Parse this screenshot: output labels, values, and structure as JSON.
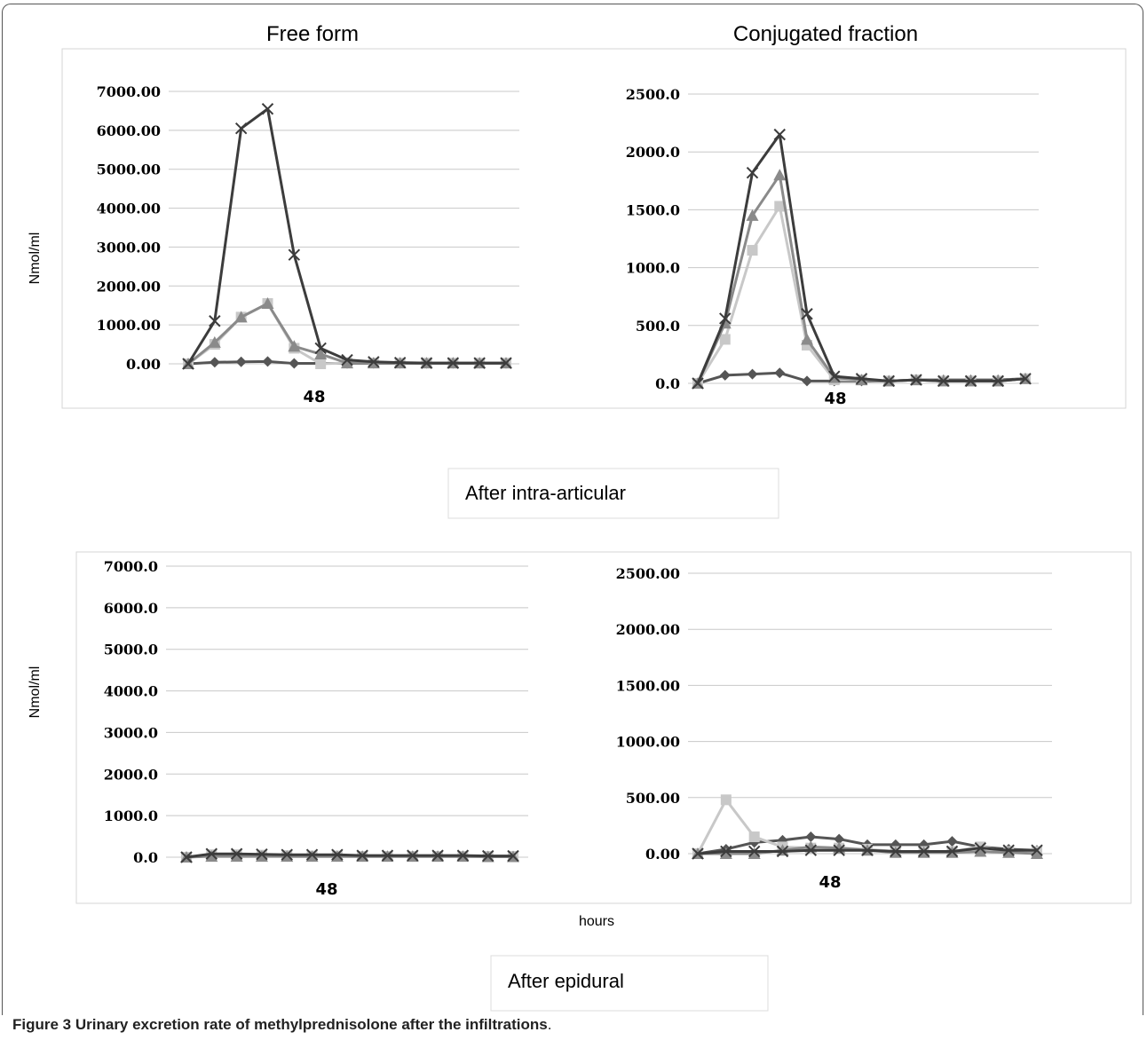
{
  "figure": {
    "caption_label": "Figure 3",
    "caption_text": "Urinary excretion rate of methylprednisolone after the infiltrations",
    "caption_end": ".",
    "titles": {
      "free_form": "Free form",
      "conjugated": "Conjugated fraction"
    },
    "section_labels": {
      "intra": "After intra-articular",
      "epidural": "After epidural"
    },
    "ylabel": "Nmol/ml",
    "xlabel": "hours",
    "x_tick_label": "48"
  },
  "colors": {
    "series": [
      "#555555",
      "#c8c8c8",
      "#8a8a8a",
      "#3c3c3c"
    ],
    "grid": "#c8c8c8",
    "panel_border": "#d6d6d6"
  },
  "chart_data": [
    {
      "type": "line",
      "title": "Free form",
      "ylabel": "Nmol/ml",
      "ylim": [
        0,
        7000
      ],
      "yticks": [
        "0.00",
        "1000.00",
        "2000.00",
        "3000.00",
        "4000.00",
        "5000.00",
        "6000.00",
        "7000.00"
      ],
      "x_tick_label": "48",
      "grid": true,
      "series": [
        {
          "marker": "diamond",
          "values": [
            0,
            40,
            50,
            60,
            10,
            10,
            10,
            10,
            10,
            10,
            10,
            10,
            10
          ]
        },
        {
          "marker": "square",
          "values": [
            0,
            500,
            1200,
            1550,
            400,
            0,
            20,
            20,
            20,
            20,
            20,
            20,
            20
          ]
        },
        {
          "marker": "triangle",
          "values": [
            0,
            550,
            1200,
            1550,
            450,
            250,
            20,
            20,
            20,
            20,
            20,
            20,
            20
          ]
        },
        {
          "marker": "x",
          "values": [
            0,
            1100,
            6050,
            6550,
            2800,
            400,
            100,
            50,
            30,
            20,
            20,
            20,
            20
          ]
        }
      ]
    },
    {
      "type": "line",
      "title": "Conjugated fraction",
      "ylim": [
        0,
        2500
      ],
      "yticks": [
        "0.0",
        "500.0",
        "1000.0",
        "1500.0",
        "2000.0",
        "2500.0"
      ],
      "x_tick_label": "48",
      "grid": true,
      "series": [
        {
          "marker": "diamond",
          "values": [
            0,
            70,
            80,
            90,
            20,
            20,
            20,
            20,
            30,
            30,
            30,
            30,
            40
          ]
        },
        {
          "marker": "square",
          "values": [
            0,
            380,
            1150,
            1530,
            330,
            30,
            30,
            20,
            30,
            20,
            20,
            20,
            40
          ]
        },
        {
          "marker": "triangle",
          "values": [
            0,
            520,
            1450,
            1800,
            380,
            50,
            30,
            20,
            30,
            20,
            20,
            20,
            40
          ]
        },
        {
          "marker": "x",
          "values": [
            0,
            560,
            1820,
            2150,
            600,
            60,
            40,
            20,
            30,
            20,
            20,
            20,
            40
          ]
        }
      ]
    },
    {
      "type": "line",
      "ylabel": "Nmol/ml",
      "ylim": [
        0,
        7000
      ],
      "yticks": [
        "0.0",
        "1000.0",
        "2000.0",
        "3000.0",
        "4000.0",
        "5000.0",
        "6000.0",
        "7000.0"
      ],
      "x_tick_label": "48",
      "grid": true,
      "series": [
        {
          "marker": "diamond",
          "values": [
            0,
            40,
            30,
            30,
            20,
            20,
            20,
            20,
            20,
            20,
            20,
            20,
            20,
            20
          ]
        },
        {
          "marker": "square",
          "values": [
            0,
            60,
            60,
            50,
            40,
            30,
            30,
            20,
            20,
            20,
            20,
            20,
            20,
            20
          ]
        },
        {
          "marker": "triangle",
          "values": [
            0,
            20,
            20,
            20,
            20,
            20,
            20,
            20,
            20,
            20,
            20,
            20,
            10,
            10
          ]
        },
        {
          "marker": "x",
          "values": [
            0,
            80,
            80,
            70,
            60,
            60,
            60,
            40,
            40,
            40,
            40,
            40,
            30,
            30
          ]
        }
      ]
    },
    {
      "type": "line",
      "ylim": [
        0,
        2500
      ],
      "yticks": [
        "0.00",
        "500.00",
        "1000.00",
        "1500.00",
        "2000.00",
        "2500.00"
      ],
      "x_tick_label": "48",
      "xlabel": "hours",
      "grid": true,
      "series": [
        {
          "marker": "diamond",
          "values": [
            0,
            40,
            100,
            120,
            150,
            130,
            80,
            80,
            80,
            110,
            60,
            40,
            30
          ]
        },
        {
          "marker": "square",
          "values": [
            0,
            480,
            150,
            60,
            50,
            50,
            40,
            20,
            20,
            20,
            60,
            20,
            20
          ]
        },
        {
          "marker": "triangle",
          "values": [
            0,
            0,
            0,
            30,
            60,
            50,
            30,
            10,
            10,
            10,
            20,
            10,
            0
          ]
        },
        {
          "marker": "x",
          "values": [
            0,
            20,
            20,
            20,
            30,
            30,
            30,
            20,
            20,
            20,
            50,
            30,
            30
          ]
        }
      ]
    }
  ]
}
